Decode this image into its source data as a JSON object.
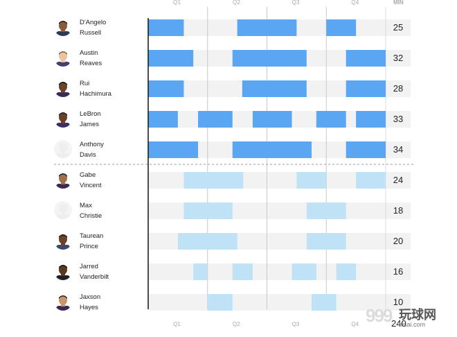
{
  "chart_data": {
    "type": "bar",
    "subtype": "rotation-timeline",
    "quarters": [
      "Q1",
      "Q2",
      "Q3",
      "Q4"
    ],
    "minutes_header": "MIN",
    "total_minutes": "240",
    "colors": {
      "starter": "#5aa6f2",
      "bench": "#bfe2f7",
      "track": "#f2f2f2",
      "grid": "#c8c8c8"
    },
    "players": [
      {
        "first": "D'Angelo",
        "last": "Russell",
        "starter": true,
        "minutes": 25,
        "avatar": {
          "skin": "#8a5a3c",
          "hair": "#1b1b1b",
          "shirt": "#2b3a55"
        },
        "segments": [
          [
            0.0,
            0.15
          ],
          [
            0.375,
            0.625
          ],
          [
            0.75,
            0.875
          ]
        ]
      },
      {
        "first": "Austin",
        "last": "Reaves",
        "starter": true,
        "minutes": 32,
        "avatar": {
          "skin": "#e9c4a2",
          "hair": "#7a5a35",
          "shirt": "#4a3b6e"
        },
        "segments": [
          [
            0.0,
            0.19
          ],
          [
            0.355,
            0.667
          ],
          [
            0.833,
            1.0
          ]
        ]
      },
      {
        "first": "Rui",
        "last": "Hachimura",
        "starter": true,
        "minutes": 28,
        "avatar": {
          "skin": "#6b4328",
          "hair": "#141414",
          "shirt": "#3b2a55"
        },
        "segments": [
          [
            0.0,
            0.15
          ],
          [
            0.396,
            0.667
          ],
          [
            0.833,
            1.0
          ]
        ]
      },
      {
        "first": "LeBron",
        "last": "James",
        "starter": true,
        "minutes": 33,
        "avatar": {
          "skin": "#6a4126",
          "hair": "#1a1a1a",
          "shirt": "#3d2f62"
        },
        "segments": [
          [
            0.0,
            0.125
          ],
          [
            0.21,
            0.355
          ],
          [
            0.44,
            0.605
          ],
          [
            0.708,
            0.833
          ],
          [
            0.875,
            1.0
          ]
        ]
      },
      {
        "first": "Anthony",
        "last": "Davis",
        "starter": true,
        "minutes": 34,
        "avatar": {
          "skin": "#eeeeee",
          "hair": "#eeeeee",
          "shirt": "#eeeeee"
        },
        "segments": [
          [
            0.0,
            0.21
          ],
          [
            0.355,
            0.688
          ],
          [
            0.833,
            1.0
          ]
        ]
      },
      {
        "first": "Gabe",
        "last": "Vincent",
        "starter": false,
        "minutes": 24,
        "avatar": {
          "skin": "#a0704a",
          "hair": "#1a1a1a",
          "shirt": "#3b2a55"
        },
        "segments": [
          [
            0.15,
            0.4
          ],
          [
            0.625,
            0.75
          ],
          [
            0.875,
            1.0
          ]
        ]
      },
      {
        "first": "Max",
        "last": "Christie",
        "starter": false,
        "minutes": 18,
        "avatar": {
          "skin": "#eeeeee",
          "hair": "#eeeeee",
          "shirt": "#eeeeee"
        },
        "segments": [
          [
            0.15,
            0.355
          ],
          [
            0.667,
            0.833
          ]
        ]
      },
      {
        "first": "Taurean",
        "last": "Prince",
        "starter": false,
        "minutes": 20,
        "avatar": {
          "skin": "#6b4328",
          "hair": "#151515",
          "shirt": "#3a4a6e"
        },
        "segments": [
          [
            0.125,
            0.375
          ],
          [
            0.667,
            0.833
          ]
        ]
      },
      {
        "first": "Jarred",
        "last": "Vanderbilt",
        "starter": false,
        "minutes": 16,
        "avatar": {
          "skin": "#5b3822",
          "hair": "#121212",
          "shirt": "#1f1f2a"
        },
        "segments": [
          [
            0.19,
            0.25
          ],
          [
            0.355,
            0.44
          ],
          [
            0.605,
            0.708
          ],
          [
            0.792,
            0.875
          ]
        ]
      },
      {
        "first": "Jaxson",
        "last": "Hayes",
        "starter": false,
        "minutes": 10,
        "avatar": {
          "skin": "#c9966e",
          "hair": "#2a1e14",
          "shirt": "#3b2a55"
        },
        "segments": [
          [
            0.25,
            0.355
          ],
          [
            0.688,
            0.792
          ]
        ]
      }
    ]
  },
  "watermark": {
    "digits": "999",
    "cn": "玩球网",
    "url": "bisai.com"
  }
}
